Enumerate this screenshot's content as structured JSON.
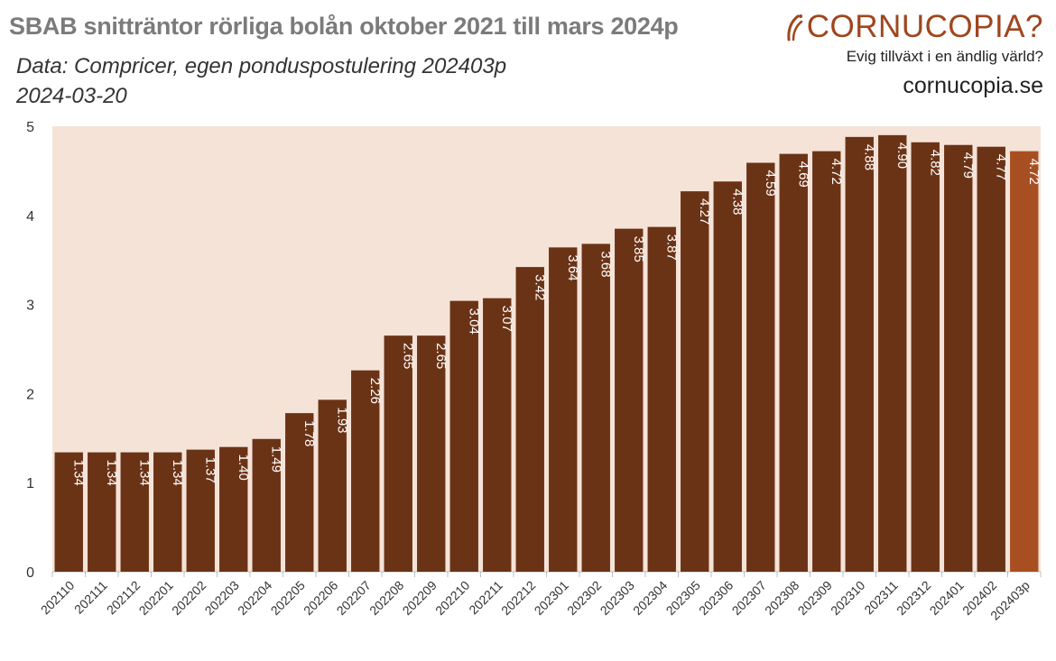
{
  "header": {
    "title": "SBAB snitträntor rörliga bolån oktober 2021 till mars 2024p",
    "subtitle": "Data: Compricer, egen ponduspostulering 202403p",
    "date": "2024-03-20"
  },
  "logo": {
    "name": "CORNUCOPIA?",
    "tagline": "Evig tillväxt i en ändlig värld?",
    "site": "cornucopia.se",
    "icon": "cornucopia-horn-icon"
  },
  "colors": {
    "bar": "#6b3316",
    "bar_highlight": "#a84f22",
    "plot_background": "#f5e3d8",
    "brand": "#a0461d"
  },
  "chart_data": {
    "type": "bar",
    "categories": [
      "202110",
      "202111",
      "202112",
      "202201",
      "202202",
      "202203",
      "202204",
      "202205",
      "202206",
      "202207",
      "202208",
      "202209",
      "202210",
      "202211",
      "202212",
      "202301",
      "202302",
      "202303",
      "202304",
      "202305",
      "202306",
      "202307",
      "202308",
      "202309",
      "202310",
      "202311",
      "202312",
      "202401",
      "202402",
      "202403p"
    ],
    "values": [
      1.34,
      1.34,
      1.34,
      1.34,
      1.37,
      1.4,
      1.49,
      1.78,
      1.93,
      2.26,
      2.65,
      2.65,
      3.04,
      3.07,
      3.42,
      3.64,
      3.68,
      3.85,
      3.87,
      4.27,
      4.38,
      4.59,
      4.69,
      4.72,
      4.88,
      4.9,
      4.82,
      4.79,
      4.77,
      4.72
    ],
    "labels": [
      "1.34",
      "1.34",
      "1.34",
      "1.34",
      "1.37",
      "1.40",
      "1.49",
      "1.78",
      "1.93",
      "2.26",
      "2.65",
      "2.65",
      "3.04",
      "3.07",
      "3.42",
      "3.64",
      "3.68",
      "3.85",
      "3.87",
      "4.27",
      "4.38",
      "4.59",
      "4.69",
      "4.72",
      "4.88",
      "4.90",
      "4.82",
      "4.79",
      "4.77",
      "4.72"
    ],
    "highlight_last": true,
    "ylim": [
      0,
      5
    ],
    "yticks": [
      "0",
      "1",
      "2",
      "3",
      "4",
      "5"
    ],
    "xlabel": "",
    "ylabel": "",
    "grid": false,
    "legend": "none"
  }
}
